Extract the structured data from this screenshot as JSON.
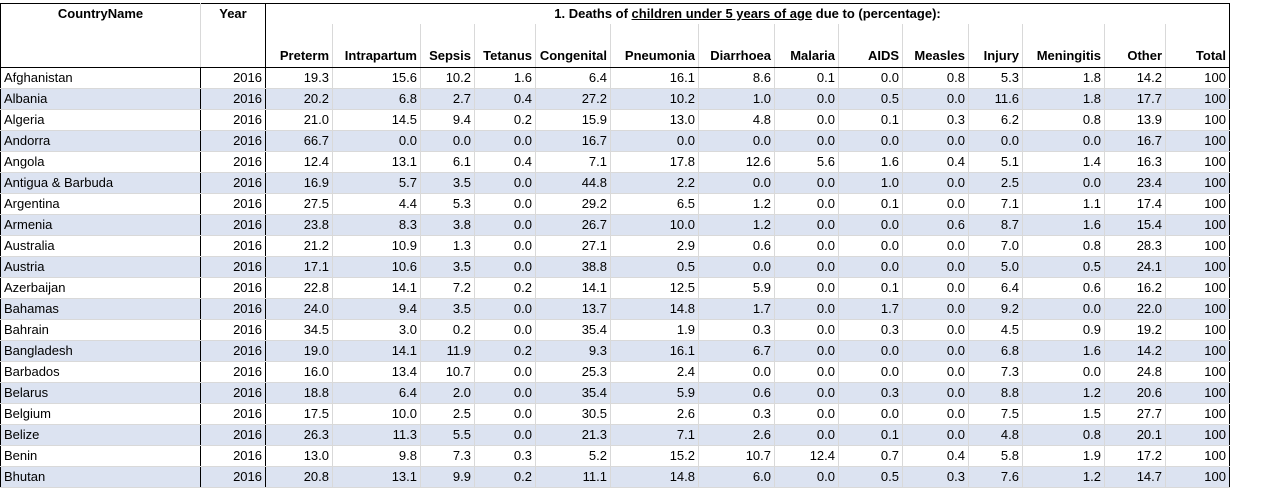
{
  "headers": {
    "country": "CountryName",
    "year": "Year",
    "title_prefix": "1. Deaths of ",
    "title_underlined_1": "children under 5 years of age",
    "title_middle": " due to (percentage):",
    "columns": [
      "Preterm",
      "Intrapartum",
      "Sepsis",
      "Tetanus",
      "Congenital",
      "Pneumonia",
      "Diarrhoea",
      "Malaria",
      "AIDS",
      "Measles",
      "Injury",
      "Meningitis",
      "Other",
      "Total"
    ]
  },
  "rows": [
    {
      "country": "Afghanistan",
      "year": "2016",
      "v": [
        "19.3",
        "15.6",
        "10.2",
        "1.6",
        "6.4",
        "16.1",
        "8.6",
        "0.1",
        "0.0",
        "0.8",
        "5.3",
        "1.8",
        "14.2",
        "100"
      ]
    },
    {
      "country": "Albania",
      "year": "2016",
      "v": [
        "20.2",
        "6.8",
        "2.7",
        "0.4",
        "27.2",
        "10.2",
        "1.0",
        "0.0",
        "0.5",
        "0.0",
        "11.6",
        "1.8",
        "17.7",
        "100"
      ]
    },
    {
      "country": "Algeria",
      "year": "2016",
      "v": [
        "21.0",
        "14.5",
        "9.4",
        "0.2",
        "15.9",
        "13.0",
        "4.8",
        "0.0",
        "0.1",
        "0.3",
        "6.2",
        "0.8",
        "13.9",
        "100"
      ]
    },
    {
      "country": "Andorra",
      "year": "2016",
      "v": [
        "66.7",
        "0.0",
        "0.0",
        "0.0",
        "16.7",
        "0.0",
        "0.0",
        "0.0",
        "0.0",
        "0.0",
        "0.0",
        "0.0",
        "16.7",
        "100"
      ]
    },
    {
      "country": "Angola",
      "year": "2016",
      "v": [
        "12.4",
        "13.1",
        "6.1",
        "0.4",
        "7.1",
        "17.8",
        "12.6",
        "5.6",
        "1.6",
        "0.4",
        "5.1",
        "1.4",
        "16.3",
        "100"
      ]
    },
    {
      "country": "Antigua & Barbuda",
      "year": "2016",
      "v": [
        "16.9",
        "5.7",
        "3.5",
        "0.0",
        "44.8",
        "2.2",
        "0.0",
        "0.0",
        "1.0",
        "0.0",
        "2.5",
        "0.0",
        "23.4",
        "100"
      ]
    },
    {
      "country": "Argentina",
      "year": "2016",
      "v": [
        "27.5",
        "4.4",
        "5.3",
        "0.0",
        "29.2",
        "6.5",
        "1.2",
        "0.0",
        "0.1",
        "0.0",
        "7.1",
        "1.1",
        "17.4",
        "100"
      ]
    },
    {
      "country": "Armenia",
      "year": "2016",
      "v": [
        "23.8",
        "8.3",
        "3.8",
        "0.0",
        "26.7",
        "10.0",
        "1.2",
        "0.0",
        "0.0",
        "0.6",
        "8.7",
        "1.6",
        "15.4",
        "100"
      ]
    },
    {
      "country": "Australia",
      "year": "2016",
      "v": [
        "21.2",
        "10.9",
        "1.3",
        "0.0",
        "27.1",
        "2.9",
        "0.6",
        "0.0",
        "0.0",
        "0.0",
        "7.0",
        "0.8",
        "28.3",
        "100"
      ]
    },
    {
      "country": "Austria",
      "year": "2016",
      "v": [
        "17.1",
        "10.6",
        "3.5",
        "0.0",
        "38.8",
        "0.5",
        "0.0",
        "0.0",
        "0.0",
        "0.0",
        "5.0",
        "0.5",
        "24.1",
        "100"
      ]
    },
    {
      "country": "Azerbaijan",
      "year": "2016",
      "v": [
        "22.8",
        "14.1",
        "7.2",
        "0.2",
        "14.1",
        "12.5",
        "5.9",
        "0.0",
        "0.1",
        "0.0",
        "6.4",
        "0.6",
        "16.2",
        "100"
      ]
    },
    {
      "country": "Bahamas",
      "year": "2016",
      "v": [
        "24.0",
        "9.4",
        "3.5",
        "0.0",
        "13.7",
        "14.8",
        "1.7",
        "0.0",
        "1.7",
        "0.0",
        "9.2",
        "0.0",
        "22.0",
        "100"
      ]
    },
    {
      "country": "Bahrain",
      "year": "2016",
      "v": [
        "34.5",
        "3.0",
        "0.2",
        "0.0",
        "35.4",
        "1.9",
        "0.3",
        "0.0",
        "0.3",
        "0.0",
        "4.5",
        "0.9",
        "19.2",
        "100"
      ]
    },
    {
      "country": "Bangladesh",
      "year": "2016",
      "v": [
        "19.0",
        "14.1",
        "11.9",
        "0.2",
        "9.3",
        "16.1",
        "6.7",
        "0.0",
        "0.0",
        "0.0",
        "6.8",
        "1.6",
        "14.2",
        "100"
      ]
    },
    {
      "country": "Barbados",
      "year": "2016",
      "v": [
        "16.0",
        "13.4",
        "10.7",
        "0.0",
        "25.3",
        "2.4",
        "0.0",
        "0.0",
        "0.0",
        "0.0",
        "7.3",
        "0.0",
        "24.8",
        "100"
      ]
    },
    {
      "country": "Belarus",
      "year": "2016",
      "v": [
        "18.8",
        "6.4",
        "2.0",
        "0.0",
        "35.4",
        "5.9",
        "0.6",
        "0.0",
        "0.3",
        "0.0",
        "8.8",
        "1.2",
        "20.6",
        "100"
      ]
    },
    {
      "country": "Belgium",
      "year": "2016",
      "v": [
        "17.5",
        "10.0",
        "2.5",
        "0.0",
        "30.5",
        "2.6",
        "0.3",
        "0.0",
        "0.0",
        "0.0",
        "7.5",
        "1.5",
        "27.7",
        "100"
      ]
    },
    {
      "country": "Belize",
      "year": "2016",
      "v": [
        "26.3",
        "11.3",
        "5.5",
        "0.0",
        "21.3",
        "7.1",
        "2.6",
        "0.0",
        "0.1",
        "0.0",
        "4.8",
        "0.8",
        "20.1",
        "100"
      ]
    },
    {
      "country": "Benin",
      "year": "2016",
      "v": [
        "13.0",
        "9.8",
        "7.3",
        "0.3",
        "5.2",
        "15.2",
        "10.7",
        "12.4",
        "0.7",
        "0.4",
        "5.8",
        "1.9",
        "17.2",
        "100"
      ]
    },
    {
      "country": "Bhutan",
      "year": "2016",
      "v": [
        "20.8",
        "13.1",
        "9.9",
        "0.2",
        "11.1",
        "14.8",
        "6.0",
        "0.0",
        "0.5",
        "0.3",
        "7.6",
        "1.2",
        "14.7",
        "100"
      ]
    }
  ]
}
